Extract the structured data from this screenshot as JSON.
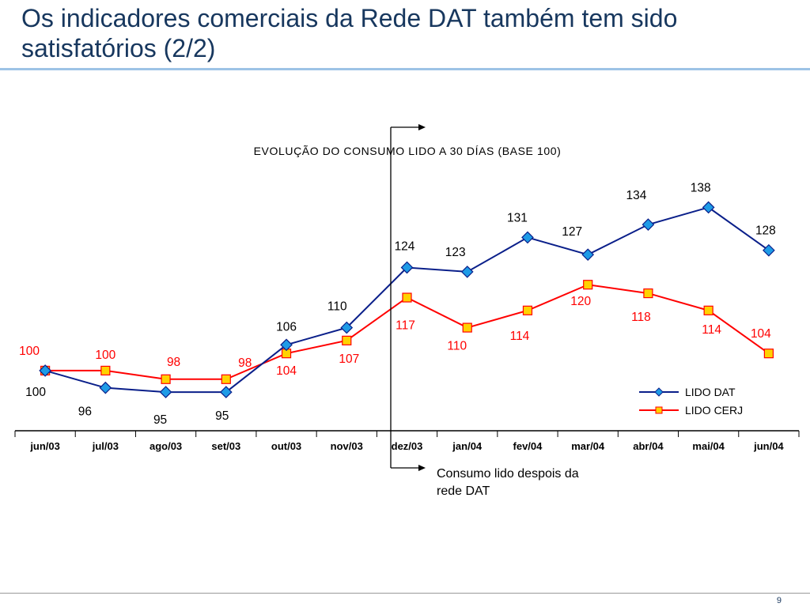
{
  "slide": {
    "title": "Os indicadores comerciais da Rede DAT também tem sido satisfatórios (2/2)",
    "page_number": "9"
  },
  "annotation": {
    "line1": "Consumo lido despois da",
    "line2": "rede DAT"
  },
  "colors": {
    "title": "#17375e",
    "title_rule": "#9dc3e6",
    "series_dat_line": "#0a1f8a",
    "series_dat_marker": "#1e9be6",
    "series_cerj_line": "#ff0000",
    "series_cerj_marker": "#ffd200"
  },
  "chart_data": {
    "type": "line",
    "title": "EVOLUÇÃO DO CONSUMO LIDO A 30 DÍAS (BASE 100)",
    "categories": [
      "jun/03",
      "jul/03",
      "ago/03",
      "set/03",
      "out/03",
      "nov/03",
      "dez/03",
      "jan/04",
      "fev/04",
      "mar/04",
      "abr/04",
      "mai/04",
      "jun/04"
    ],
    "series": [
      {
        "name": "LIDO DAT",
        "values": [
          100,
          96,
          95,
          95,
          106,
          110,
          124,
          123,
          131,
          127,
          134,
          138,
          128
        ],
        "marker": "diamond"
      },
      {
        "name": "LIDO CERJ",
        "values": [
          100,
          100,
          98,
          98,
          104,
          107,
          117,
          110,
          114,
          120,
          118,
          114,
          104
        ],
        "marker": "square"
      }
    ],
    "xlabel": "",
    "ylabel": "",
    "ylim": [
      86,
      155
    ],
    "grid": false,
    "legend": "bottom-right"
  }
}
